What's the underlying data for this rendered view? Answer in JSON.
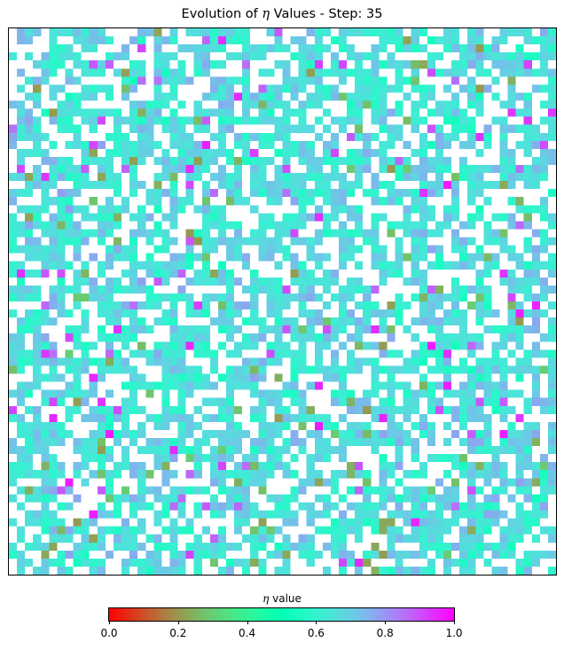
{
  "chart_data": {
    "type": "heatmap",
    "title_prefix": "Evolution of",
    "title_symbol": "η",
    "title_suffix": " Values  - Step: 35",
    "grid": {
      "rows": 68,
      "cols": 68,
      "empty_fraction": 0.35,
      "seed": 35
    },
    "value_distribution": {
      "mean": 0.66,
      "spread": 0.08,
      "rare_low_fraction": 0.04,
      "rare_high_fraction": 0.04
    },
    "colormap": "rainbow_r",
    "colorbar": {
      "label_symbol": "η",
      "label_suffix": " value",
      "range": [
        0.0,
        1.0
      ],
      "ticks": [
        "0.0",
        "0.2",
        "0.4",
        "0.6",
        "0.8",
        "1.0"
      ]
    }
  }
}
